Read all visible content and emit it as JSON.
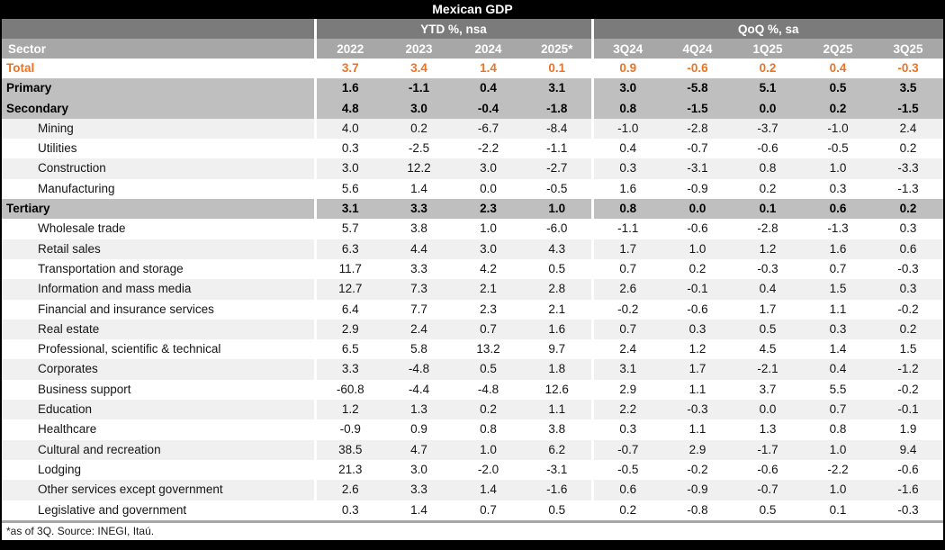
{
  "colors": {
    "accent_orange": "#EB7323",
    "title_bar_bg": "#000000",
    "band_bg": "#7B7B7B",
    "header_bg": "#A7A7A7",
    "group_row_bg": "#BFBFBF",
    "shaded_row_bg": "#F0F0F0",
    "divider_grey": "#A7A7A7"
  },
  "chart_data": {
    "type": "table",
    "title": "Mexican GDP",
    "footnote": "*as of 3Q. Source: INEGI, Itaú.",
    "column_groups": [
      {
        "label": "YTD %, nsa",
        "span": 4
      },
      {
        "label": "QoQ %, sa",
        "span": 5
      }
    ],
    "columns": [
      "Sector",
      "2022",
      "2023",
      "2024",
      "2025*",
      "3Q24",
      "4Q24",
      "1Q25",
      "2Q25",
      "3Q25"
    ],
    "rows": [
      {
        "sector": "Total",
        "level": "total",
        "shaded": false,
        "values": [
          "3.7",
          "3.4",
          "1.4",
          "0.1",
          "0.9",
          "-0.6",
          "0.2",
          "0.4",
          "-0.3"
        ]
      },
      {
        "sector": "Primary",
        "level": "group",
        "shaded": false,
        "values": [
          "1.6",
          "-1.1",
          "0.4",
          "3.1",
          "3.0",
          "-5.8",
          "5.1",
          "0.5",
          "3.5"
        ]
      },
      {
        "sector": "Secondary",
        "level": "group",
        "shaded": false,
        "values": [
          "4.8",
          "3.0",
          "-0.4",
          "-1.8",
          "0.8",
          "-1.5",
          "0.0",
          "0.2",
          "-1.5"
        ]
      },
      {
        "sector": "Mining",
        "level": "sub",
        "shaded": true,
        "values": [
          "4.0",
          "0.2",
          "-6.7",
          "-8.4",
          "-1.0",
          "-2.8",
          "-3.7",
          "-1.0",
          "2.4"
        ]
      },
      {
        "sector": "Utilities",
        "level": "sub",
        "shaded": false,
        "values": [
          "0.3",
          "-2.5",
          "-2.2",
          "-1.1",
          "0.4",
          "-0.7",
          "-0.6",
          "-0.5",
          "0.2"
        ]
      },
      {
        "sector": "Construction",
        "level": "sub",
        "shaded": true,
        "values": [
          "3.0",
          "12.2",
          "3.0",
          "-2.7",
          "0.3",
          "-3.1",
          "0.8",
          "1.0",
          "-3.3"
        ]
      },
      {
        "sector": "Manufacturing",
        "level": "sub",
        "shaded": false,
        "values": [
          "5.6",
          "1.4",
          "0.0",
          "-0.5",
          "1.6",
          "-0.9",
          "0.2",
          "0.3",
          "-1.3"
        ]
      },
      {
        "sector": "Tertiary",
        "level": "group",
        "shaded": false,
        "values": [
          "3.1",
          "3.3",
          "2.3",
          "1.0",
          "0.8",
          "0.0",
          "0.1",
          "0.6",
          "0.2"
        ]
      },
      {
        "sector": "Wholesale trade",
        "level": "sub",
        "shaded": false,
        "values": [
          "5.7",
          "3.8",
          "1.0",
          "-6.0",
          "-1.1",
          "-0.6",
          "-2.8",
          "-1.3",
          "0.3"
        ]
      },
      {
        "sector": "Retail sales",
        "level": "sub",
        "shaded": true,
        "values": [
          "6.3",
          "4.4",
          "3.0",
          "4.3",
          "1.7",
          "1.0",
          "1.2",
          "1.6",
          "0.6"
        ]
      },
      {
        "sector": "Transportation and storage",
        "level": "sub",
        "shaded": false,
        "values": [
          "11.7",
          "3.3",
          "4.2",
          "0.5",
          "0.7",
          "0.2",
          "-0.3",
          "0.7",
          "-0.3"
        ]
      },
      {
        "sector": "Information and mass media",
        "level": "sub",
        "shaded": true,
        "values": [
          "12.7",
          "7.3",
          "2.1",
          "2.8",
          "2.6",
          "-0.1",
          "0.4",
          "1.5",
          "0.3"
        ]
      },
      {
        "sector": "Financial and insurance services",
        "level": "sub",
        "shaded": false,
        "values": [
          "6.4",
          "7.7",
          "2.3",
          "2.1",
          "-0.2",
          "-0.6",
          "1.7",
          "1.1",
          "-0.2"
        ]
      },
      {
        "sector": "Real estate",
        "level": "sub",
        "shaded": true,
        "values": [
          "2.9",
          "2.4",
          "0.7",
          "1.6",
          "0.7",
          "0.3",
          "0.5",
          "0.3",
          "0.2"
        ]
      },
      {
        "sector": "Professional, scientific & technical",
        "level": "sub",
        "shaded": false,
        "values": [
          "6.5",
          "5.8",
          "13.2",
          "9.7",
          "2.4",
          "1.2",
          "4.5",
          "1.4",
          "1.5"
        ]
      },
      {
        "sector": "Corporates",
        "level": "sub",
        "shaded": true,
        "values": [
          "3.3",
          "-4.8",
          "0.5",
          "1.8",
          "3.1",
          "1.7",
          "-2.1",
          "0.4",
          "-1.2"
        ]
      },
      {
        "sector": "Business support",
        "level": "sub",
        "shaded": false,
        "values": [
          "-60.8",
          "-4.4",
          "-4.8",
          "12.6",
          "2.9",
          "1.1",
          "3.7",
          "5.5",
          "-0.2"
        ]
      },
      {
        "sector": "Education",
        "level": "sub",
        "shaded": true,
        "values": [
          "1.2",
          "1.3",
          "0.2",
          "1.1",
          "2.2",
          "-0.3",
          "0.0",
          "0.7",
          "-0.1"
        ]
      },
      {
        "sector": "Healthcare",
        "level": "sub",
        "shaded": false,
        "values": [
          "-0.9",
          "0.9",
          "0.8",
          "3.8",
          "0.3",
          "1.1",
          "1.3",
          "0.8",
          "1.9"
        ]
      },
      {
        "sector": "Cultural and recreation",
        "level": "sub",
        "shaded": true,
        "values": [
          "38.5",
          "4.7",
          "1.0",
          "6.2",
          "-0.7",
          "2.9",
          "-1.7",
          "1.0",
          "9.4"
        ]
      },
      {
        "sector": "Lodging",
        "level": "sub",
        "shaded": false,
        "values": [
          "21.3",
          "3.0",
          "-2.0",
          "-3.1",
          "-0.5",
          "-0.2",
          "-0.6",
          "-2.2",
          "-0.6"
        ]
      },
      {
        "sector": "Other services except government",
        "level": "sub",
        "shaded": true,
        "values": [
          "2.6",
          "3.3",
          "1.4",
          "-1.6",
          "0.6",
          "-0.9",
          "-0.7",
          "1.0",
          "-1.6"
        ]
      },
      {
        "sector": "Legislative and government",
        "level": "sub",
        "shaded": false,
        "values": [
          "0.3",
          "1.4",
          "0.7",
          "0.5",
          "0.2",
          "-0.8",
          "0.5",
          "0.1",
          "-0.3"
        ]
      }
    ]
  }
}
